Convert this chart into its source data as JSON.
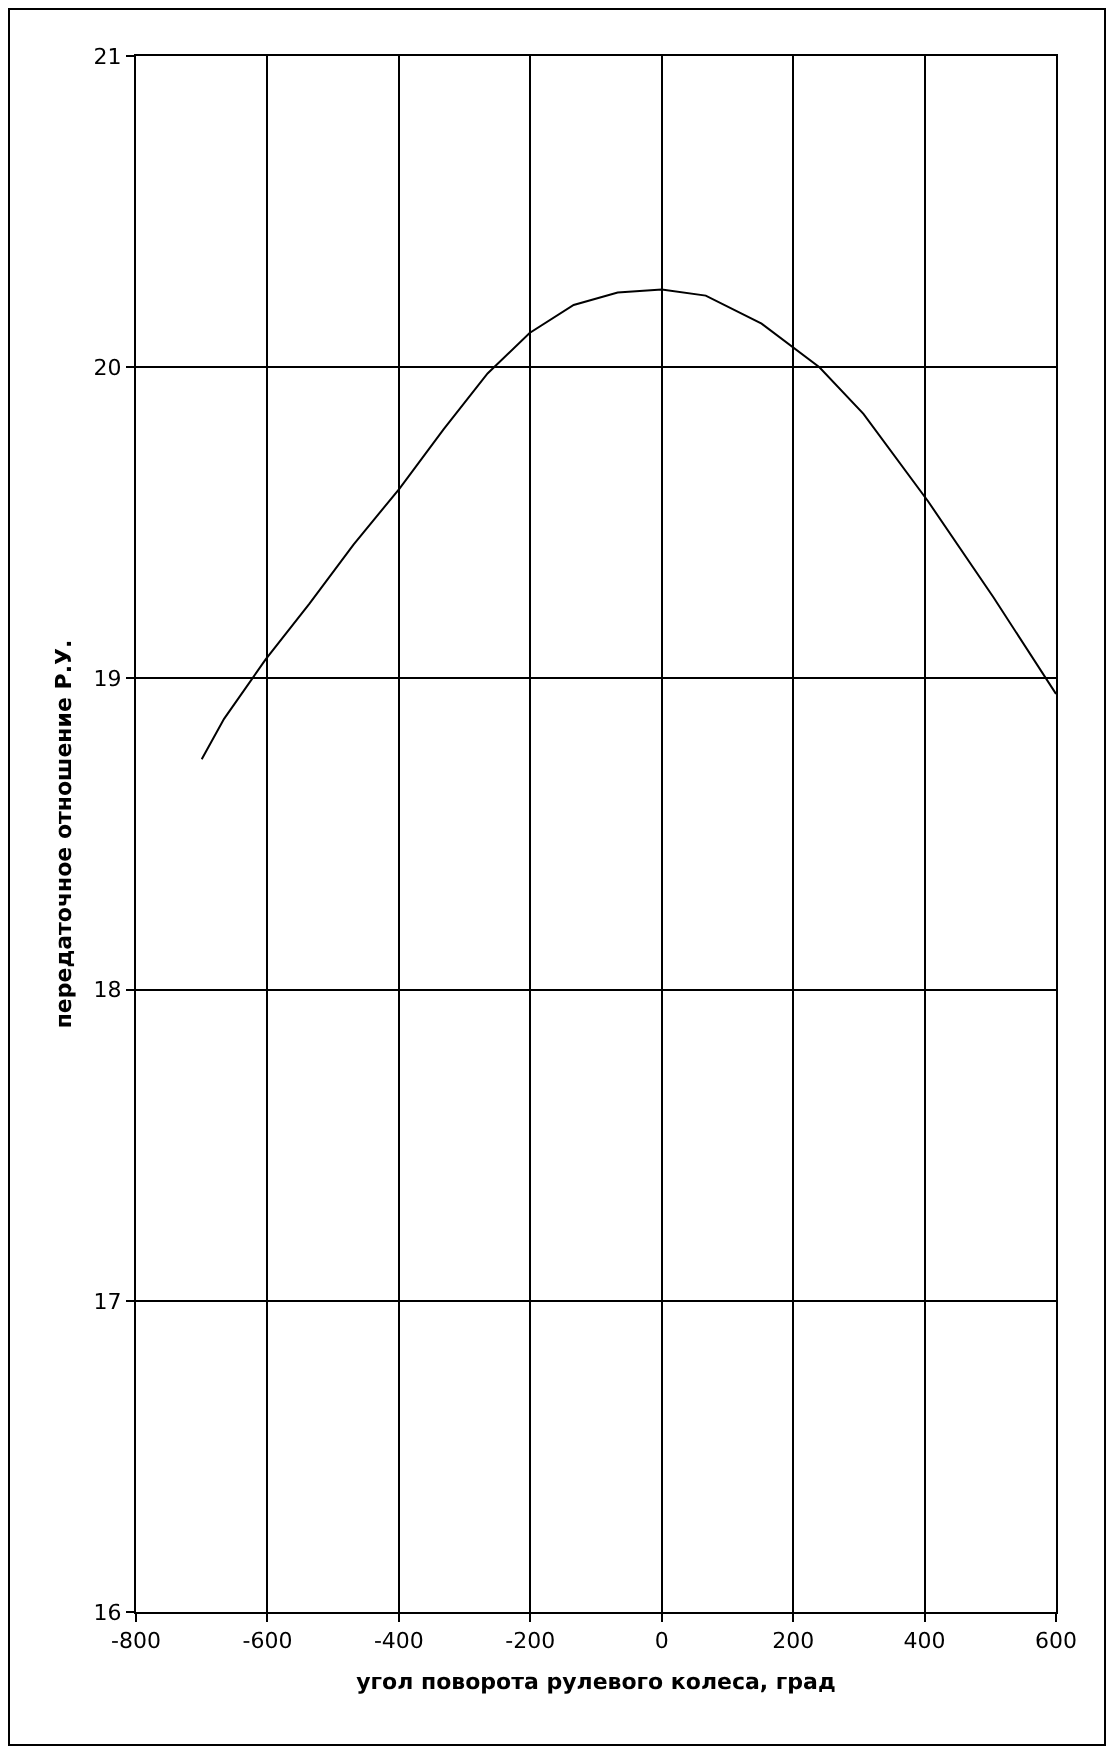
{
  "chart_data": {
    "type": "line",
    "xlabel": "угол поворота рулевого колеса, град",
    "ylabel": "передаточное отношение Р.У.",
    "xlim": [
      -800,
      600
    ],
    "xticks": [
      -800,
      -600,
      -400,
      -200,
      0,
      200,
      400,
      600
    ],
    "ylim": [
      16,
      21
    ],
    "yticks": [
      16,
      17,
      18,
      19,
      20,
      21
    ],
    "grid": true,
    "marker": "none",
    "line_style": "solid",
    "series": [
      {
        "color": "#000000",
        "x": [
          -700,
          -666,
          -603,
          -536,
          -469,
          -399,
          -332,
          -265,
          -201,
          -134,
          -67,
          0,
          67,
          152,
          240,
          307,
          405,
          505,
          600
        ],
        "values": [
          18.74,
          18.87,
          19.06,
          19.24,
          19.43,
          19.61,
          19.8,
          19.98,
          20.11,
          20.2,
          20.24,
          20.25,
          20.23,
          20.14,
          20.0,
          19.85,
          19.57,
          19.26,
          18.95
        ]
      }
    ]
  }
}
